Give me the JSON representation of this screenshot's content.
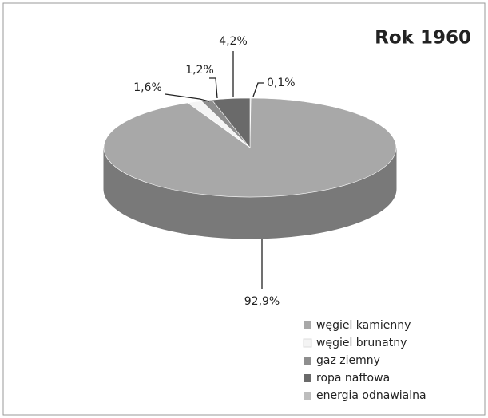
{
  "chart_data": {
    "type": "pie",
    "title": "Rok 1960",
    "categories": [
      "węgiel kamienny",
      "węgiel brunatny",
      "gaz ziemny",
      "ropa naftowa",
      "energia odnawialna"
    ],
    "values": [
      92.9,
      1.6,
      1.2,
      4.2,
      0.1
    ],
    "value_labels": [
      "92,9%",
      "1,6%",
      "1,2%",
      "4,2%",
      "0,1%"
    ],
    "colors": [
      "#a8a8a8",
      "#f4f4f4",
      "#8e8e8e",
      "#6a6a6a",
      "#bdbdbd"
    ],
    "legend": "bottom-right"
  }
}
